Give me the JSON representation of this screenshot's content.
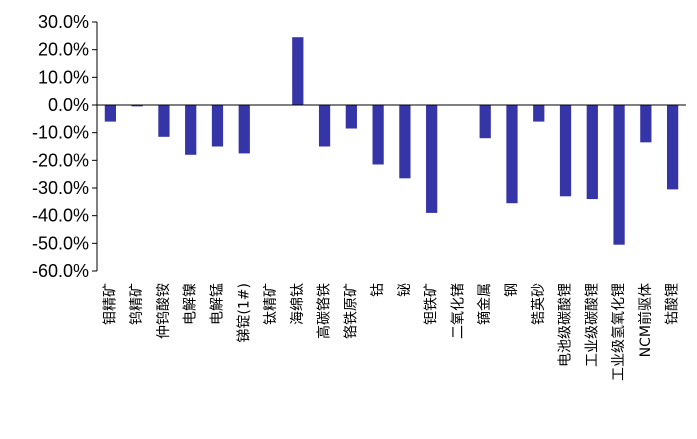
{
  "chart_data": {
    "type": "bar",
    "title": "",
    "xlabel": "",
    "ylabel": "",
    "ylim": [
      -60,
      30
    ],
    "yticks": [
      30,
      20,
      10,
      0,
      -10,
      -20,
      -30,
      -40,
      -50,
      -60
    ],
    "ytick_labels": [
      "30.0%",
      "20.0%",
      "10.0%",
      "0.0%",
      "-10.0%",
      "-20.0%",
      "-30.0%",
      "-40.0%",
      "-50.0%",
      "-60.0%"
    ],
    "grid": false,
    "bar_color": "#3535a8",
    "categories": [
      "钼精矿",
      "钨精矿",
      "仲钨酸铵",
      "电解镍",
      "电解锰",
      "锑锭(1#)",
      "钛精矿",
      "海绵钛",
      "高碳铬铁",
      "铬铁原矿",
      "钴",
      "铋",
      "钽铁矿",
      "二氧化锗",
      "镝金属",
      "钢",
      "锆英砂",
      "电池级碳酸锂",
      "工业级碳酸锂",
      "工业级氢氧化锂",
      "NCM前驱体",
      "钴酸锂"
    ],
    "values": [
      -6.0,
      -0.5,
      -11.5,
      -18.0,
      -15.0,
      -17.5,
      0.0,
      24.5,
      -15.0,
      -8.5,
      -21.5,
      -26.5,
      -39.0,
      0.0,
      -12.0,
      -35.5,
      -6.0,
      -33.0,
      -34.0,
      -50.5,
      -13.5,
      -30.5
    ]
  }
}
